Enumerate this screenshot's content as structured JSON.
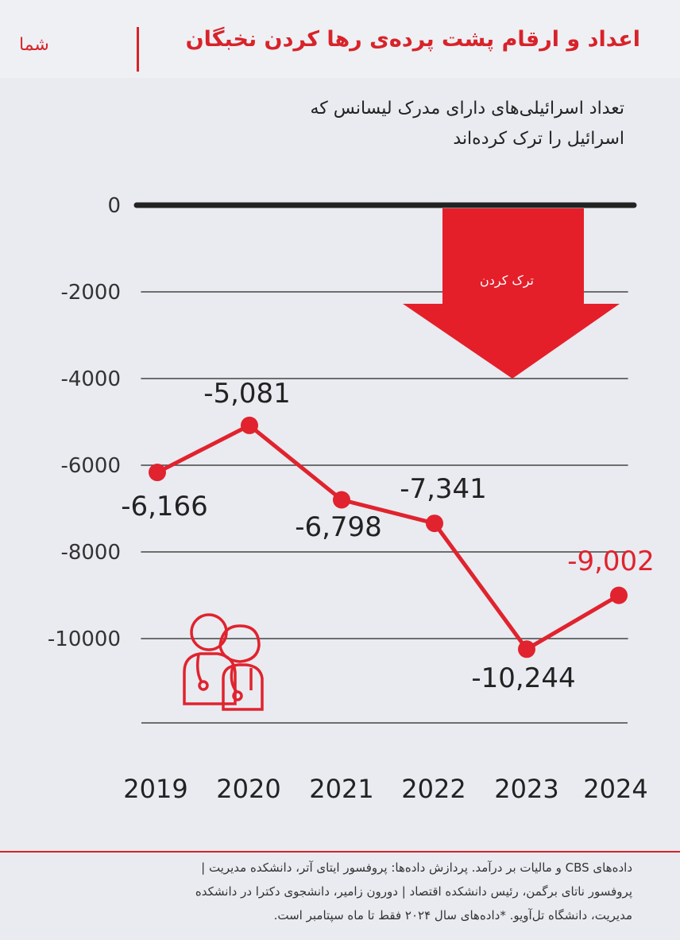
{
  "header": {
    "brand": "شما",
    "title": "اعداد و ارقام پشت پرده‌ی رها کردن نخبگان"
  },
  "subtitle": {
    "line1": "تعداد اسرائیلی‌های دارای مدرک لیسانس که",
    "line2": "اسرائیل را ترک کرده‌اند"
  },
  "arrow_label": "ترک کردن",
  "chart_data": {
    "type": "line",
    "title": "تعداد اسرائیلی‌های دارای مدرک لیسانس که اسرائیل را ترک کرده‌اند",
    "x": [
      "2019",
      "2020",
      "2021",
      "2022",
      "2023",
      "2024"
    ],
    "series": [
      {
        "values": [
          -6166,
          -5081,
          -6798,
          -7341,
          -10244,
          -9002
        ],
        "labels": [
          "-6,166",
          "-5,081",
          "-6,798",
          "-7,341",
          "-10,244",
          "-9,002"
        ],
        "color": "#e0232e",
        "highlight_color": "#e0232e",
        "highlight_index": 5
      }
    ],
    "yticks": [
      "0",
      "-2000",
      "-4000",
      "-6000",
      "-8000",
      "-10000"
    ],
    "ylim": [
      -12000,
      0
    ],
    "grid": true,
    "zero_line_color": "#222222",
    "grid_color": "#444444"
  },
  "footer": {
    "line1": "داده‌های CBS و مالیات بر درآمد. پردازش داده‌ها: پروفسور ایتای آتر، دانشکده مدیریت |",
    "line2": "پروفسور ناتای برگمن، رئیس دانشکده اقتصاد | دورون زامیر، دانشجوی دکترا در دانشکده",
    "line3": "مدیریت، دانشگاه تل‌آویو. *داده‌های سال ۲۰۲۴ فقط تا ماه سپتامبر است."
  }
}
